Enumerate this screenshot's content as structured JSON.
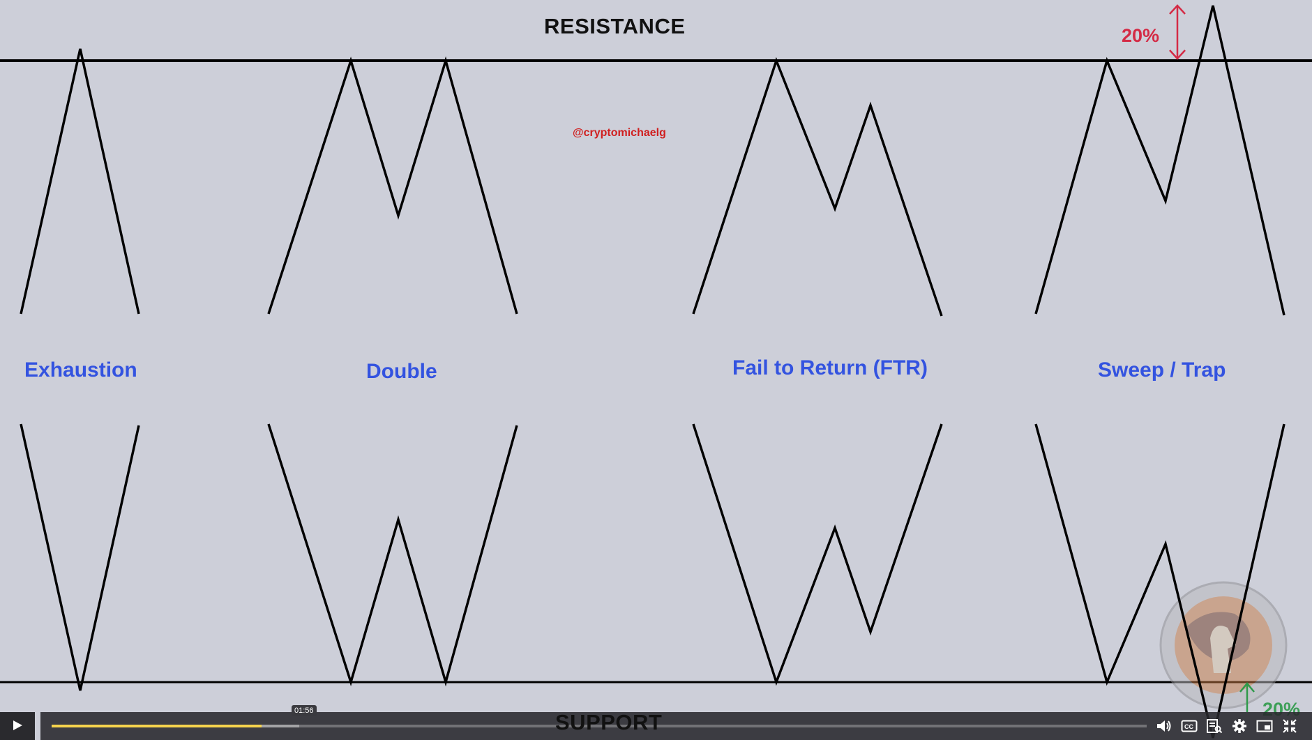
{
  "diagram": {
    "resistance_label": "RESISTANCE",
    "support_label": "SUPPORT",
    "handle": "@cryptomichaelg",
    "patterns": [
      {
        "name": "Exhaustion"
      },
      {
        "name": "Double"
      },
      {
        "name": "Fail to Return (FTR)"
      },
      {
        "name": "Sweep / Trap"
      }
    ],
    "sweep_top_percent": "20%",
    "sweep_bottom_percent": "20%",
    "colors": {
      "background": "#cdcfd9",
      "pattern_label": "#3353e0",
      "handle": "#d01f1f",
      "percent_top": "#d42a45",
      "percent_bottom": "#2e9a4a"
    }
  },
  "player": {
    "current_time": "01:56",
    "progress_fraction": 0.192,
    "buffered_fraction": 0.226,
    "play_icon": "play-icon",
    "control_icons": [
      "volume-icon",
      "closed-captions-icon",
      "transcript-icon",
      "settings-gear-icon",
      "picture-in-picture-icon",
      "exit-fullscreen-icon"
    ]
  }
}
